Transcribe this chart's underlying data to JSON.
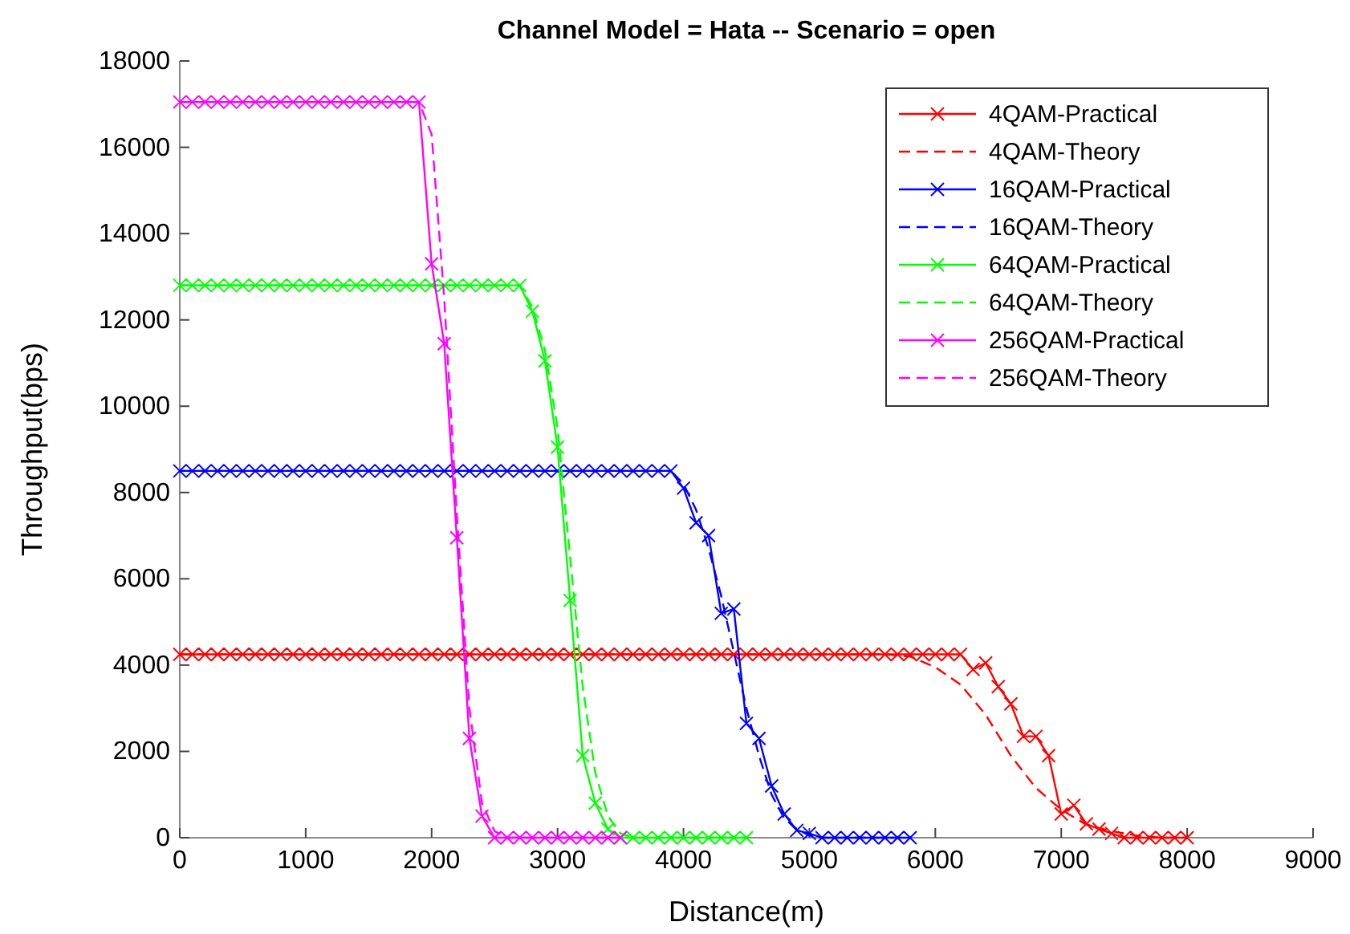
{
  "chart_data": {
    "type": "line",
    "title": "Channel Model = Hata -- Scenario = open",
    "xlabel": "Distance(m)",
    "ylabel": "Throughput(bps)",
    "xlim": [
      0,
      9000
    ],
    "xticks": [
      0,
      1000,
      2000,
      3000,
      4000,
      5000,
      6000,
      7000,
      8000,
      9000
    ],
    "ylim": [
      0,
      18000
    ],
    "yticks": [
      0,
      2000,
      4000,
      6000,
      8000,
      10000,
      12000,
      14000,
      16000,
      18000
    ],
    "grid": false,
    "legend": "top right",
    "series": [
      {
        "name": "4QAM-Practical",
        "color": "#ff0000",
        "marker": "cross",
        "line_style": "solid",
        "x": [
          0,
          100,
          200,
          300,
          400,
          500,
          600,
          700,
          800,
          900,
          1000,
          1100,
          1200,
          1300,
          1400,
          1500,
          1600,
          1700,
          1800,
          1900,
          2000,
          2100,
          2200,
          2300,
          2400,
          2500,
          2600,
          2700,
          2800,
          2900,
          3000,
          3100,
          3200,
          3300,
          3400,
          3500,
          3600,
          3700,
          3800,
          3900,
          4000,
          4100,
          4200,
          4300,
          4400,
          4500,
          4600,
          4700,
          4800,
          4900,
          5000,
          5100,
          5200,
          5300,
          5400,
          5500,
          5600,
          5700,
          5800,
          5900,
          6000,
          6100,
          6200,
          6300,
          6400,
          6500,
          6600,
          6700,
          6800,
          6900,
          7000,
          7100,
          7200,
          7300,
          7400,
          7500,
          7600,
          7700,
          7800,
          7900,
          8000
        ],
        "values": [
          4250,
          4250,
          4250,
          4250,
          4250,
          4250,
          4250,
          4250,
          4250,
          4250,
          4250,
          4250,
          4250,
          4250,
          4250,
          4250,
          4250,
          4250,
          4250,
          4250,
          4250,
          4250,
          4250,
          4250,
          4250,
          4250,
          4250,
          4250,
          4250,
          4250,
          4250,
          4250,
          4250,
          4250,
          4250,
          4250,
          4250,
          4250,
          4250,
          4250,
          4250,
          4250,
          4250,
          4250,
          4250,
          4250,
          4250,
          4250,
          4250,
          4250,
          4250,
          4250,
          4250,
          4250,
          4250,
          4250,
          4250,
          4250,
          4250,
          4250,
          4250,
          4250,
          4250,
          3900,
          4050,
          3500,
          3100,
          2350,
          2350,
          1900,
          550,
          750,
          320,
          200,
          100,
          0,
          0,
          0,
          0,
          0,
          0
        ]
      },
      {
        "name": "4QAM-Theory",
        "color": "#ff0000",
        "line_style": "dashed",
        "x": [
          0,
          5600,
          5800,
          6000,
          6200,
          6400,
          6600,
          6800,
          7000,
          7200,
          7400,
          7600,
          7800,
          8000
        ],
        "values": [
          4250,
          4250,
          4200,
          3950,
          3550,
          2850,
          1900,
          1150,
          650,
          300,
          150,
          50,
          0,
          0
        ]
      },
      {
        "name": "16QAM-Practical",
        "color": "#0000ff",
        "marker": "cross",
        "line_style": "solid",
        "x": [
          0,
          100,
          200,
          300,
          400,
          500,
          600,
          700,
          800,
          900,
          1000,
          1100,
          1200,
          1300,
          1400,
          1500,
          1600,
          1700,
          1800,
          1900,
          2000,
          2100,
          2200,
          2300,
          2400,
          2500,
          2600,
          2700,
          2800,
          2900,
          3000,
          3100,
          3200,
          3300,
          3400,
          3500,
          3600,
          3700,
          3800,
          3900,
          4000,
          4100,
          4200,
          4300,
          4400,
          4500,
          4600,
          4700,
          4800,
          4900,
          5000,
          5100,
          5200,
          5300,
          5400,
          5500,
          5600,
          5700,
          5800
        ],
        "values": [
          8500,
          8500,
          8500,
          8500,
          8500,
          8500,
          8500,
          8500,
          8500,
          8500,
          8500,
          8500,
          8500,
          8500,
          8500,
          8500,
          8500,
          8500,
          8500,
          8500,
          8500,
          8500,
          8500,
          8500,
          8500,
          8500,
          8500,
          8500,
          8500,
          8500,
          8500,
          8500,
          8500,
          8500,
          8500,
          8500,
          8500,
          8500,
          8500,
          8500,
          8100,
          7300,
          7000,
          5200,
          5300,
          2650,
          2300,
          1200,
          550,
          170,
          100,
          0,
          0,
          0,
          0,
          0,
          0,
          0,
          0
        ]
      },
      {
        "name": "16QAM-Theory",
        "color": "#0000ff",
        "line_style": "dashed",
        "x": [
          0,
          3900,
          4000,
          4100,
          4200,
          4300,
          4400,
          4500,
          4600,
          4700,
          4800,
          4900,
          5000,
          5100,
          5800
        ],
        "values": [
          8500,
          8500,
          8200,
          7600,
          6700,
          5600,
          4300,
          3000,
          1900,
          1000,
          450,
          200,
          50,
          0,
          0
        ]
      },
      {
        "name": "64QAM-Practical",
        "color": "#00ff00",
        "marker": "cross",
        "line_style": "solid",
        "x": [
          0,
          100,
          200,
          300,
          400,
          500,
          600,
          700,
          800,
          900,
          1000,
          1100,
          1200,
          1300,
          1400,
          1500,
          1600,
          1700,
          1800,
          1900,
          2000,
          2100,
          2200,
          2300,
          2400,
          2500,
          2600,
          2700,
          2800,
          2900,
          3000,
          3100,
          3200,
          3300,
          3400,
          3500,
          3600,
          3700,
          3800,
          3900,
          4000,
          4100,
          4200,
          4300,
          4400,
          4500
        ],
        "values": [
          12800,
          12800,
          12800,
          12800,
          12800,
          12800,
          12800,
          12800,
          12800,
          12800,
          12800,
          12800,
          12800,
          12800,
          12800,
          12800,
          12800,
          12800,
          12800,
          12800,
          12800,
          12800,
          12800,
          12800,
          12800,
          12800,
          12800,
          12800,
          12200,
          11050,
          9050,
          5500,
          1900,
          800,
          200,
          0,
          0,
          0,
          0,
          0,
          0,
          0,
          0,
          0,
          0,
          0
        ]
      },
      {
        "name": "64QAM-Theory",
        "color": "#00ff00",
        "line_style": "dashed",
        "x": [
          0,
          2700,
          2800,
          2900,
          3000,
          3100,
          3200,
          3300,
          3400,
          3500,
          3600,
          4500
        ],
        "values": [
          12800,
          12800,
          12300,
          11300,
          9500,
          6500,
          3500,
          1500,
          500,
          100,
          0,
          0
        ]
      },
      {
        "name": "256QAM-Practical",
        "color": "#ff00ff",
        "marker": "cross",
        "line_style": "solid",
        "x": [
          0,
          100,
          200,
          300,
          400,
          500,
          600,
          700,
          800,
          900,
          1000,
          1100,
          1200,
          1300,
          1400,
          1500,
          1600,
          1700,
          1800,
          1900,
          2000,
          2100,
          2200,
          2300,
          2400,
          2500,
          2600,
          2700,
          2800,
          2900,
          3000,
          3100,
          3200,
          3300,
          3400,
          3500
        ],
        "values": [
          17050,
          17050,
          17050,
          17050,
          17050,
          17050,
          17050,
          17050,
          17050,
          17050,
          17050,
          17050,
          17050,
          17050,
          17050,
          17050,
          17050,
          17050,
          17050,
          17050,
          13300,
          11450,
          6950,
          2300,
          500,
          0,
          0,
          0,
          0,
          0,
          0,
          0,
          0,
          0,
          0,
          0
        ]
      },
      {
        "name": "256QAM-Theory",
        "color": "#ff00ff",
        "line_style": "dashed",
        "x": [
          0,
          1900,
          2000,
          2100,
          2200,
          2300,
          2400,
          2500,
          2600,
          3500
        ],
        "values": [
          17050,
          17050,
          16300,
          12500,
          7500,
          3000,
          800,
          150,
          0,
          0
        ]
      }
    ]
  }
}
